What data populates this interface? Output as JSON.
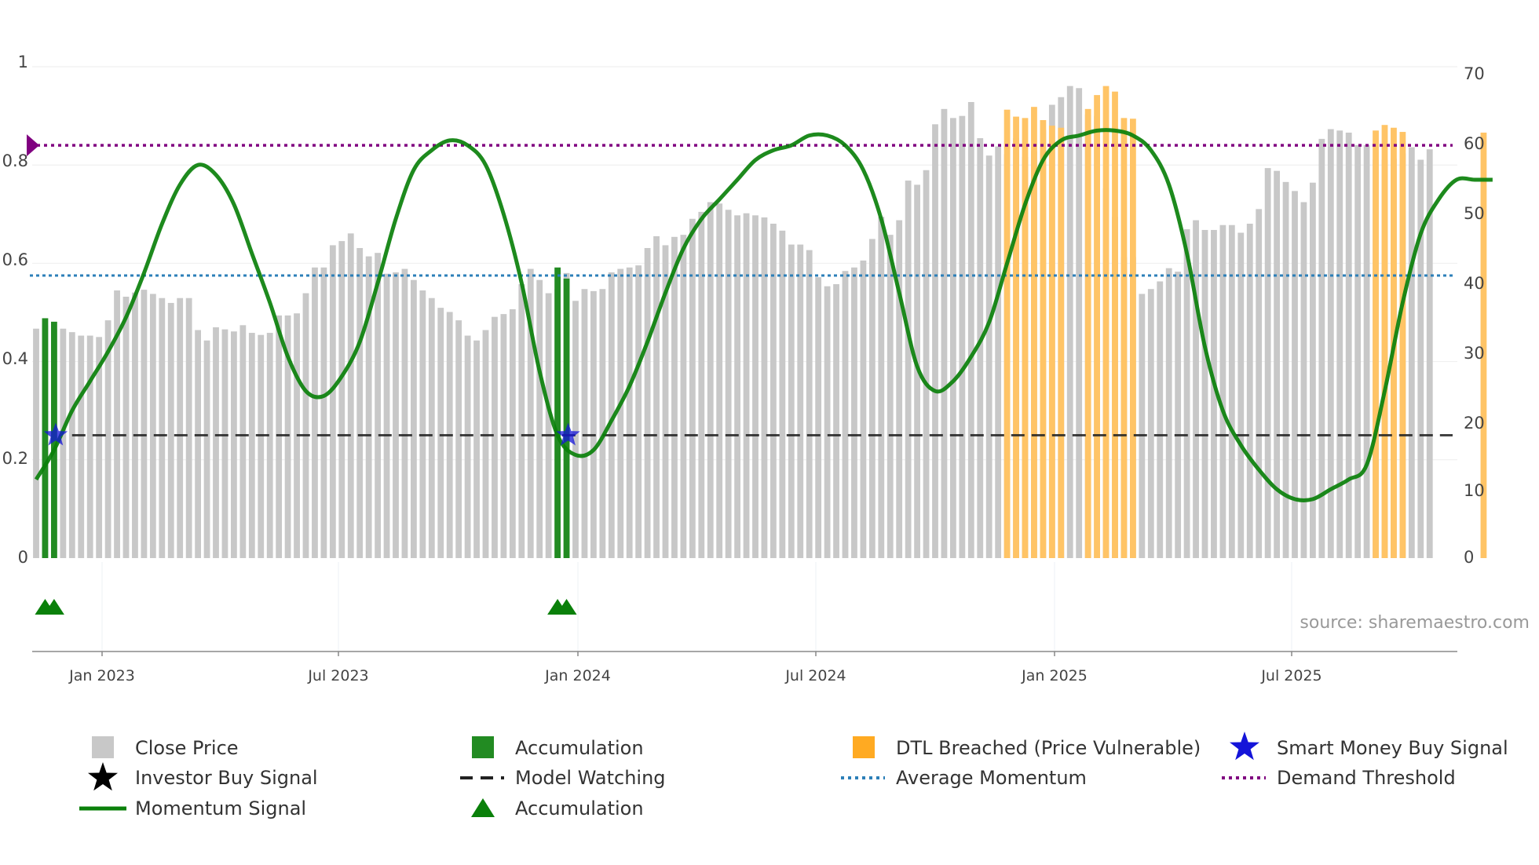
{
  "chart_data": {
    "type": "bar",
    "title": "",
    "source": "source: sharemaestro.com",
    "left_axis": {
      "ticks": [
        "0",
        "0.2",
        "0.4",
        "0.6",
        "0.8",
        "1"
      ],
      "range": [
        0,
        1
      ]
    },
    "right_axis": {
      "ticks": [
        "0",
        "10",
        "20",
        "30",
        "40",
        "50",
        "60",
        "70"
      ],
      "range": [
        0,
        70
      ]
    },
    "x_axis": {
      "ticks": [
        "Jan 2023",
        "Jul 2023",
        "Jan 2024",
        "Jul 2024",
        "Jan 2025",
        "Jul 2025"
      ],
      "range_weeks": [
        0,
        163
      ]
    },
    "close_price_bars": [
      33,
      33.5,
      33,
      33,
      32.5,
      32,
      32,
      31.8,
      34.2,
      38.5,
      37.6,
      38.2,
      38.6,
      38,
      37.4,
      36.7,
      37.4,
      37.4,
      32.8,
      31.3,
      33.2,
      32.9,
      32.6,
      33.5,
      32.4,
      32.1,
      32.4,
      34.9,
      34.9,
      35.2,
      38.1,
      41.8,
      41.8,
      45,
      45.6,
      46.7,
      44.6,
      43.4,
      43.9,
      40.9,
      41.1,
      41.6,
      40,
      38.5,
      37.4,
      36,
      35.4,
      34.2,
      32,
      31.3,
      32.8,
      34.7,
      35.1,
      35.8,
      39.4,
      41.6,
      40,
      38.1,
      38.7,
      41,
      37,
      38.7,
      38.4,
      38.7,
      41.1,
      41.6,
      41.8,
      42.1,
      44.6,
      46.3,
      45,
      46.2,
      46.5,
      48.8,
      49.8,
      51.2,
      51,
      50.1,
      49.3,
      49.6,
      49.3,
      49,
      48.1,
      47.1,
      45.1,
      45.1,
      44.3,
      40.4,
      39.1,
      39.4,
      41.3,
      41.8,
      42.8,
      45.9,
      49.1,
      46.5,
      48.6,
      54.3,
      53.7,
      55.8,
      62.4,
      64.6,
      63.3,
      63.6,
      65.6,
      60.4,
      57.9,
      59.2,
      58.1,
      60.4,
      57.7,
      58.5,
      61.6,
      65.2,
      66.3,
      67.9,
      67.6,
      63.8,
      63.6,
      53.2,
      49.1,
      43.3,
      43.3,
      38,
      38.7,
      39.8,
      41.7,
      41.2,
      47.3,
      48.6,
      47.2,
      47.2,
      47.9,
      47.9,
      46.8,
      48.1,
      50.2,
      56.1,
      55.7,
      54.1,
      52.8,
      51.2,
      54,
      60.3,
      61.7,
      61.5,
      61.2,
      59.4,
      59.4,
      57.3,
      57.3,
      57.5,
      58.2,
      59.1,
      57.3,
      58.8
    ],
    "accumulation_bars": [
      [
        1,
        34.5
      ],
      [
        2,
        34
      ],
      [
        58,
        41.8
      ],
      [
        59,
        40.2
      ]
    ],
    "dtl_breached_bars": [
      [
        108,
        64.5
      ],
      [
        109,
        63.5
      ],
      [
        110,
        63.3
      ],
      [
        111,
        64.9
      ],
      [
        112,
        63
      ],
      [
        113,
        62.2
      ],
      [
        114,
        61.9
      ],
      [
        117,
        64.6
      ],
      [
        118,
        66.6
      ],
      [
        119,
        67.9
      ],
      [
        120,
        67.1
      ],
      [
        121,
        63.3
      ],
      [
        122,
        63.2
      ],
      [
        149,
        61.5
      ],
      [
        150,
        62.3
      ],
      [
        151,
        61.9
      ],
      [
        152,
        61.3
      ],
      [
        161,
        61.2
      ]
    ],
    "momentum_signal": [
      [
        0,
        0.16
      ],
      [
        2,
        0.22
      ],
      [
        4,
        0.3
      ],
      [
        6,
        0.36
      ],
      [
        8,
        0.42
      ],
      [
        10,
        0.49
      ],
      [
        12,
        0.58
      ],
      [
        14,
        0.68
      ],
      [
        16,
        0.76
      ],
      [
        18,
        0.8
      ],
      [
        20,
        0.78
      ],
      [
        22,
        0.72
      ],
      [
        24,
        0.62
      ],
      [
        26,
        0.52
      ],
      [
        28,
        0.41
      ],
      [
        30,
        0.34
      ],
      [
        32,
        0.33
      ],
      [
        34,
        0.37
      ],
      [
        36,
        0.44
      ],
      [
        38,
        0.56
      ],
      [
        40,
        0.69
      ],
      [
        42,
        0.79
      ],
      [
        44,
        0.83
      ],
      [
        46,
        0.85
      ],
      [
        48,
        0.84
      ],
      [
        50,
        0.8
      ],
      [
        52,
        0.7
      ],
      [
        54,
        0.56
      ],
      [
        56,
        0.38
      ],
      [
        58,
        0.25
      ],
      [
        60,
        0.21
      ],
      [
        62,
        0.22
      ],
      [
        64,
        0.28
      ],
      [
        66,
        0.35
      ],
      [
        68,
        0.44
      ],
      [
        70,
        0.54
      ],
      [
        72,
        0.63
      ],
      [
        74,
        0.69
      ],
      [
        76,
        0.73
      ],
      [
        78,
        0.77
      ],
      [
        80,
        0.81
      ],
      [
        82,
        0.83
      ],
      [
        84,
        0.84
      ],
      [
        86,
        0.86
      ],
      [
        88,
        0.86
      ],
      [
        90,
        0.84
      ],
      [
        92,
        0.79
      ],
      [
        94,
        0.69
      ],
      [
        96,
        0.54
      ],
      [
        98,
        0.39
      ],
      [
        100,
        0.34
      ],
      [
        102,
        0.36
      ],
      [
        104,
        0.41
      ],
      [
        106,
        0.48
      ],
      [
        108,
        0.6
      ],
      [
        110,
        0.72
      ],
      [
        112,
        0.81
      ],
      [
        114,
        0.85
      ],
      [
        116,
        0.86
      ],
      [
        118,
        0.87
      ],
      [
        120,
        0.87
      ],
      [
        122,
        0.86
      ],
      [
        124,
        0.83
      ],
      [
        126,
        0.76
      ],
      [
        128,
        0.62
      ],
      [
        130,
        0.43
      ],
      [
        132,
        0.3
      ],
      [
        134,
        0.23
      ],
      [
        136,
        0.18
      ],
      [
        138,
        0.14
      ],
      [
        140,
        0.12
      ],
      [
        142,
        0.12
      ],
      [
        144,
        0.14
      ],
      [
        146,
        0.16
      ],
      [
        148,
        0.19
      ],
      [
        150,
        0.34
      ],
      [
        152,
        0.52
      ],
      [
        154,
        0.66
      ],
      [
        156,
        0.73
      ],
      [
        158,
        0.77
      ],
      [
        160,
        0.77
      ],
      [
        162,
        0.77
      ]
    ],
    "average_momentum": 0.575,
    "demand_threshold": 0.84,
    "model_watching": 0.25,
    "smart_money_buy_signals": [
      [
        2,
        0.25
      ],
      [
        59,
        0.25
      ]
    ],
    "accumulation_markers": [
      1,
      2,
      58,
      59
    ],
    "legend": {
      "close_price": "Close Price",
      "accumulation_bar": "Accumulation",
      "dtl_breached": "DTL Breached (Price Vulnerable)",
      "smart_money": "Smart Money Buy Signal",
      "investor_buy": "Investor Buy Signal",
      "model_watching": "Model Watching",
      "average_momentum": "Average Momentum",
      "demand_threshold": "Demand Threshold",
      "momentum_signal": "Momentum Signal",
      "accumulation_marker": "Accumulation"
    },
    "colors": {
      "close": "#c8c8c8",
      "accumulation": "#228b22",
      "dtl": "#ffc466",
      "dtl_legend": "#ffaa22",
      "momentum": "#0a800a",
      "average": "#2c7fb8",
      "demand": "#800080",
      "watching": "#222222",
      "smart_money": "#1414d9",
      "investor": "#000000"
    }
  }
}
